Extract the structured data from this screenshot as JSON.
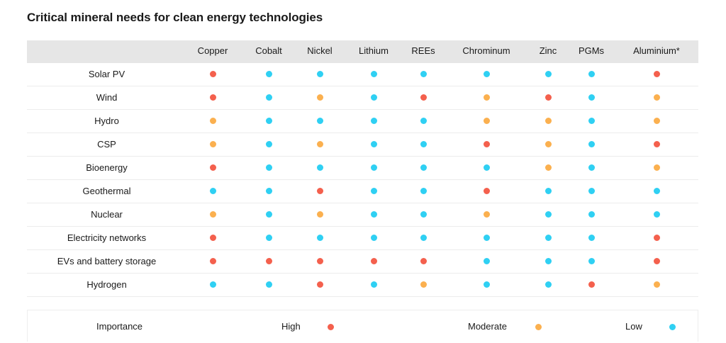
{
  "chart_data": {
    "type": "table",
    "title": "Critical mineral needs for clean energy technologies",
    "columns": [
      "Copper",
      "Cobalt",
      "Nickel",
      "Lithium",
      "REEs",
      "Chrominum",
      "Zinc",
      "PGMs",
      "Aluminium*"
    ],
    "rows": [
      {
        "label": "Solar PV",
        "values": [
          "high",
          "low",
          "low",
          "low",
          "low",
          "low",
          "low",
          "low",
          "high"
        ]
      },
      {
        "label": "Wind",
        "values": [
          "high",
          "low",
          "moderate",
          "low",
          "high",
          "moderate",
          "high",
          "low",
          "moderate"
        ]
      },
      {
        "label": "Hydro",
        "values": [
          "moderate",
          "low",
          "low",
          "low",
          "low",
          "moderate",
          "moderate",
          "low",
          "moderate"
        ]
      },
      {
        "label": "CSP",
        "values": [
          "moderate",
          "low",
          "moderate",
          "low",
          "low",
          "high",
          "moderate",
          "low",
          "high"
        ]
      },
      {
        "label": "Bioenergy",
        "values": [
          "high",
          "low",
          "low",
          "low",
          "low",
          "low",
          "moderate",
          "low",
          "moderate"
        ]
      },
      {
        "label": "Geothermal",
        "values": [
          "low",
          "low",
          "high",
          "low",
          "low",
          "high",
          "low",
          "low",
          "low"
        ]
      },
      {
        "label": "Nuclear",
        "values": [
          "moderate",
          "low",
          "moderate",
          "low",
          "low",
          "moderate",
          "low",
          "low",
          "low"
        ]
      },
      {
        "label": "Electricity networks",
        "values": [
          "high",
          "low",
          "low",
          "low",
          "low",
          "low",
          "low",
          "low",
          "high"
        ]
      },
      {
        "label": "EVs and battery storage",
        "values": [
          "high",
          "high",
          "high",
          "high",
          "high",
          "low",
          "low",
          "low",
          "high"
        ]
      },
      {
        "label": "Hydrogen",
        "values": [
          "low",
          "low",
          "high",
          "low",
          "moderate",
          "low",
          "low",
          "high",
          "moderate"
        ]
      }
    ],
    "legend": {
      "title": "Importance",
      "items": [
        {
          "key": "high",
          "label": "High"
        },
        {
          "key": "moderate",
          "label": "Moderate"
        },
        {
          "key": "low",
          "label": "Low"
        }
      ]
    }
  },
  "colors": {
    "high": "#f4604d",
    "moderate": "#fbb04f",
    "low": "#2fd0f3",
    "header_bg": "#e6e6e6"
  }
}
